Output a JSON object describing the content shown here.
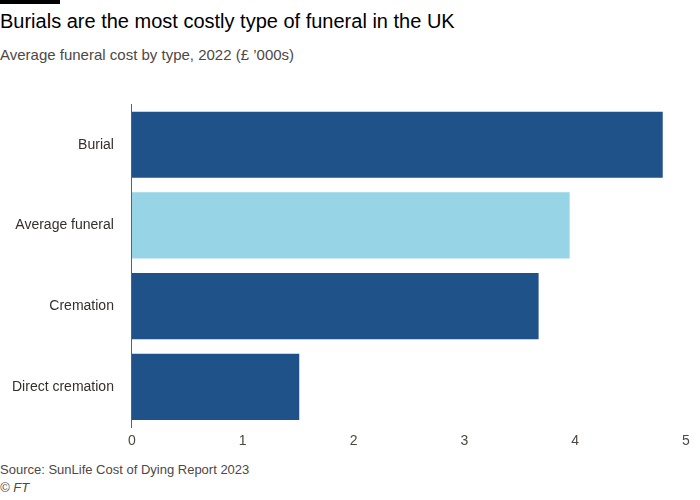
{
  "chart_data": {
    "type": "bar",
    "orientation": "horizontal",
    "title": "Burials are the most costly type of funeral in the UK",
    "subtitle": "Average funeral cost by type, 2022 (£ ’000s)",
    "source": "Source: SunLife Cost of Dying Report 2023",
    "credit": "© FT",
    "categories": [
      "Burial",
      "Average funeral",
      "Cremation",
      "Direct cremation"
    ],
    "values": [
      4.79,
      3.95,
      3.67,
      1.51
    ],
    "colors": [
      "#1f5289",
      "#96d4e6",
      "#1f5289",
      "#1f5289"
    ],
    "xlim": [
      0,
      5
    ],
    "xticks": [
      0,
      1,
      2,
      3,
      4,
      5
    ],
    "grid": false
  }
}
